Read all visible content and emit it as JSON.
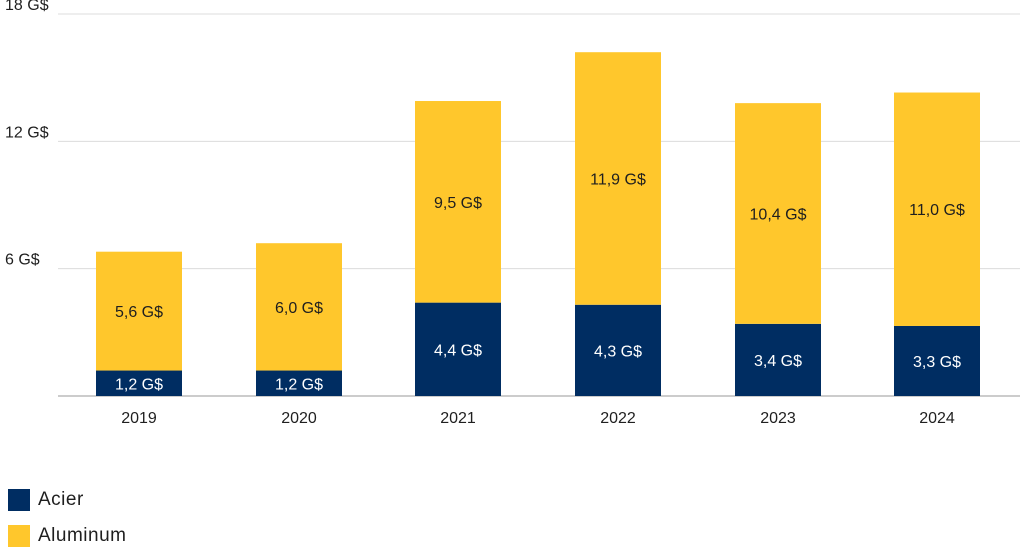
{
  "chart_data": {
    "type": "bar",
    "stacked": true,
    "categories": [
      "2019",
      "2020",
      "2021",
      "2022",
      "2023",
      "2024"
    ],
    "series": [
      {
        "name": "Acier",
        "color": "#002D62",
        "values": [
          1.2,
          1.2,
          4.4,
          4.3,
          3.4,
          3.3
        ],
        "labels": [
          "1,2 G$",
          "1,2 G$",
          "4,4 G$",
          "4,3 G$",
          "3,4 G$",
          "3,3 G$"
        ]
      },
      {
        "name": "Aluminum",
        "color": "#FFC72C",
        "values": [
          5.6,
          6.0,
          9.5,
          11.9,
          10.4,
          11.0
        ],
        "labels": [
          "5,6 G$",
          "6,0 G$",
          "9,5 G$",
          "11,9 G$",
          "10,4 G$",
          "11,0 G$"
        ]
      }
    ],
    "yticks": [
      0,
      6,
      12,
      18
    ],
    "ytick_labels": [
      "",
      "6 G$",
      "12 G$",
      "18 G$"
    ],
    "ylim": [
      0,
      18
    ],
    "grid": true,
    "legend_position": "bottom-left",
    "title": "",
    "xlabel": "",
    "ylabel": ""
  },
  "legend": {
    "items": [
      {
        "label": "Acier",
        "color": "#002D62"
      },
      {
        "label": "Aluminum",
        "color": "#FFC72C"
      }
    ]
  }
}
